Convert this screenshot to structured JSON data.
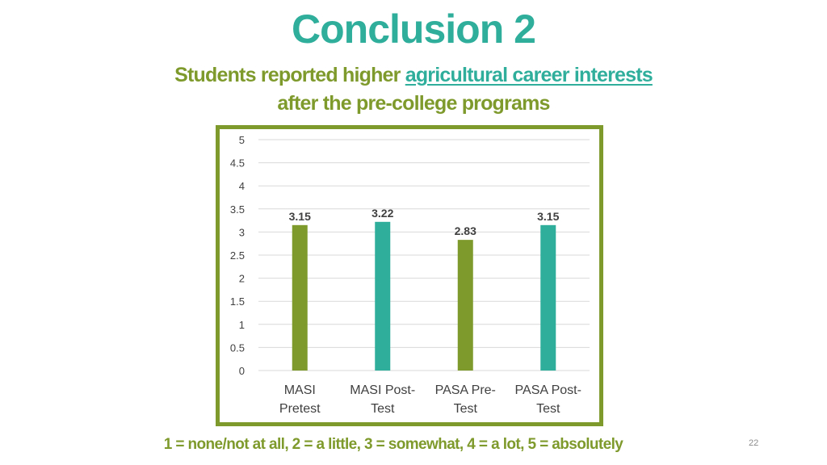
{
  "slide": {
    "title": "Conclusion 2",
    "subtitle_line1_plain": "Students reported higher",
    "subtitle_line1_highlight": "agricultural career interests",
    "subtitle_line2": "after the pre-college programs",
    "footnote": "1 = none/not at all, 2 = a little, 3 = somewhat, 4 = a lot, 5 = absolutely",
    "page_number": "22"
  },
  "colors": {
    "title": "#2fae9c",
    "accent_green": "#7f9a2c",
    "bar_green": "#7f9a2c",
    "bar_teal": "#2fae9c",
    "gridline": "#d9d9d9"
  },
  "chart_data": {
    "type": "bar",
    "categories": [
      [
        "MASI",
        "Pretest"
      ],
      [
        "MASI Post-",
        "Test"
      ],
      [
        "PASA Pre-",
        "Test"
      ],
      [
        "PASA Post-",
        "Test"
      ]
    ],
    "values": [
      3.15,
      3.22,
      2.83,
      3.15
    ],
    "data_labels": [
      "3.15",
      "3.22",
      "2.83",
      "3.15"
    ],
    "bar_colors": [
      "#7f9a2c",
      "#2fae9c",
      "#7f9a2c",
      "#2fae9c"
    ],
    "y_ticks": [
      "0",
      "0.5",
      "1",
      "1.5",
      "2",
      "2.5",
      "3",
      "3.5",
      "4",
      "4.5",
      "5"
    ],
    "ylim": [
      0,
      5
    ],
    "grid": true,
    "legend": "none"
  }
}
